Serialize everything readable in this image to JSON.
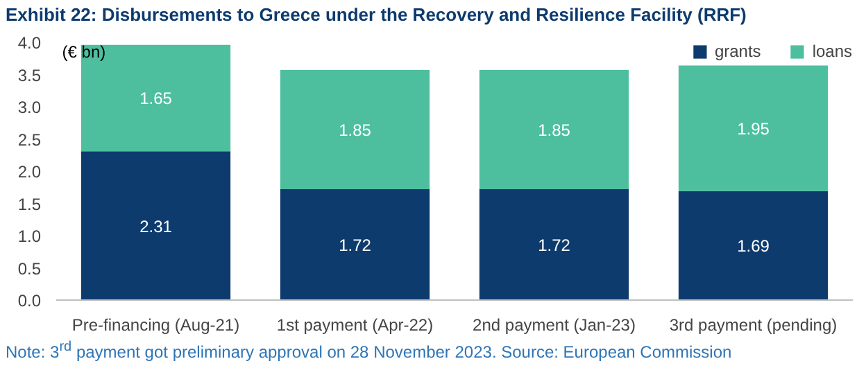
{
  "chart_data": {
    "type": "bar",
    "title": "Exhibit 22: Disbursements to Greece under the Recovery and Resilience Facility (RRF)",
    "ylabel": "(€ bn)",
    "categories": [
      "Pre-financing (Aug-21)",
      "1st payment (Apr-22)",
      "2nd payment (Jan-23)",
      "3rd payment (pending)"
    ],
    "series": [
      {
        "name": "grants",
        "color": "#0d3b6e",
        "values": [
          2.31,
          1.72,
          1.72,
          1.69
        ]
      },
      {
        "name": "loans",
        "color": "#4dbf9f",
        "values": [
          1.65,
          1.85,
          1.85,
          1.95
        ]
      }
    ],
    "stacked": true,
    "data_labels": true,
    "ylim": [
      0,
      4
    ],
    "yticks": [
      {
        "value": 0,
        "label": "0.0"
      },
      {
        "value": 0.5,
        "label": "0.5"
      },
      {
        "value": 1,
        "label": "1.0"
      },
      {
        "value": 1.5,
        "label": "1.5"
      },
      {
        "value": 2,
        "label": "2.0"
      },
      {
        "value": 2.5,
        "label": "2.5"
      },
      {
        "value": 3,
        "label": "3.0"
      },
      {
        "value": 3.5,
        "label": "3.5"
      },
      {
        "value": 4,
        "label": "4.0"
      }
    ],
    "grid": false,
    "legend": "top right",
    "annotations": [
      "Note: 3$^{rd}$ payment got preliminary approval on 28 November 2023. Source: European Commission"
    ]
  }
}
